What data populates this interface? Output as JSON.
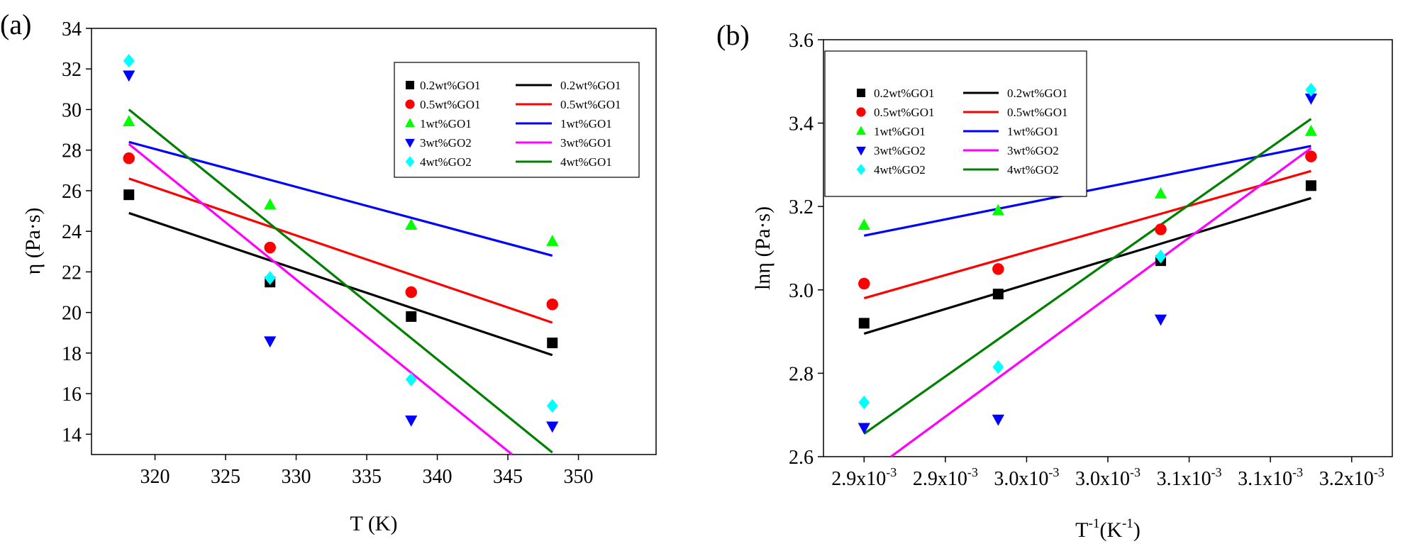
{
  "colors": {
    "0.2": "#000000",
    "0.5": "#ff0000",
    "1": "#00ff00",
    "1fit": "#0000ff",
    "3": "#0000ff",
    "3fit": "#ff00ff",
    "4": "#00ffff",
    "4fit": "#008000"
  },
  "chart_data": [
    {
      "type": "scatter",
      "panel_label": "(a)",
      "xlabel": "T (K)",
      "ylabel": "η (Pa·s)",
      "xlim": [
        315.5,
        355.5
      ],
      "ylim": [
        13,
        34
      ],
      "xticks": [
        320,
        325,
        330,
        335,
        340,
        345,
        350
      ],
      "xtick_labels": [
        "320",
        "325",
        "330",
        "335",
        "340",
        "345",
        "350"
      ],
      "yticks": [
        14,
        16,
        18,
        20,
        22,
        24,
        26,
        28,
        30,
        32,
        34
      ],
      "ytick_labels": [
        "14",
        "16",
        "18",
        "20",
        "22",
        "24",
        "26",
        "28",
        "30",
        "32",
        "34"
      ],
      "x": [
        318.15,
        328.15,
        338.15,
        348.15
      ],
      "series": [
        {
          "name": "0.2wt%GO1",
          "marker": "square",
          "color": "#000000",
          "values": [
            25.8,
            21.5,
            19.8,
            18.5
          ]
        },
        {
          "name": "0.5wt%GO1",
          "marker": "circle",
          "color": "#ff0000",
          "values": [
            27.6,
            23.2,
            21.0,
            20.4
          ]
        },
        {
          "name": "1wt%GO1",
          "marker": "triangle-up",
          "color": "#00ff00",
          "values": [
            29.4,
            25.3,
            24.3,
            23.5
          ]
        },
        {
          "name": "3wt%GO2",
          "marker": "triangle-down",
          "color": "#0000ff",
          "values": [
            31.7,
            18.6,
            14.7,
            14.4
          ]
        },
        {
          "name": "4wt%GO2",
          "marker": "diamond",
          "color": "#00ffff",
          "values": [
            32.4,
            21.7,
            16.7,
            15.4
          ]
        }
      ],
      "fits": [
        {
          "name": "0.2wt%GO1",
          "color": "#000000",
          "x": [
            318.15,
            348.15
          ],
          "y": [
            24.9,
            17.9
          ]
        },
        {
          "name": "0.5wt%GO1",
          "color": "#ff0000",
          "x": [
            318.15,
            348.15
          ],
          "y": [
            26.6,
            19.5
          ]
        },
        {
          "name": "1wt%GO1",
          "color": "#0000ff",
          "x": [
            318.15,
            348.15
          ],
          "y": [
            28.4,
            22.8
          ]
        },
        {
          "name": "3wt%GO1",
          "color": "#ff00ff",
          "x": [
            318.15,
            345.3
          ],
          "y": [
            28.3,
            13.0
          ]
        },
        {
          "name": "4wt%GO1",
          "color": "#008000",
          "x": [
            318.15,
            348.15
          ],
          "y": [
            30.0,
            13.1
          ]
        }
      ],
      "legend_placement": "top-right"
    },
    {
      "type": "scatter",
      "panel_label": "(b)",
      "xlabel": "T⁻¹(K⁻¹)",
      "xlabel_base": "T",
      "xlabel_sup1": "-1",
      "xlabel_mid": "(K",
      "xlabel_sup2": "-1",
      "xlabel_end": ")",
      "ylabel": "lnη (Pa·s)",
      "xlim": [
        0,
        7
      ],
      "ylim": [
        2.6,
        3.6
      ],
      "xticks": [
        0.5,
        1.5,
        2.5,
        3.5,
        4.5,
        5.5,
        6.5
      ],
      "xtick_mantissas": [
        "2.9x10",
        "2.9x10",
        "3.0x10",
        "3.0x10",
        "3.1x10",
        "3.1x10",
        "3.2x10"
      ],
      "xtick_exponent": "-3",
      "yticks": [
        2.6,
        2.8,
        3.0,
        3.2,
        3.4,
        3.6
      ],
      "ytick_labels": [
        "2.6",
        "2.8",
        "3.0",
        "3.2",
        "3.4",
        "3.6"
      ],
      "x": [
        0.5,
        2.15,
        4.15,
        6.0
      ],
      "series": [
        {
          "name": "0.2wt%GO1",
          "marker": "square",
          "color": "#000000",
          "values": [
            2.92,
            2.99,
            3.07,
            3.25
          ]
        },
        {
          "name": "0.5wt%GO1",
          "marker": "circle",
          "color": "#ff0000",
          "values": [
            3.015,
            3.05,
            3.145,
            3.32
          ]
        },
        {
          "name": "1wt%GO1",
          "marker": "triangle-up",
          "color": "#00ff00",
          "values": [
            3.155,
            3.19,
            3.23,
            3.38
          ]
        },
        {
          "name": "3wt%GO2",
          "marker": "triangle-down",
          "color": "#0000ff",
          "values": [
            2.67,
            2.69,
            2.93,
            3.46
          ]
        },
        {
          "name": "4wt%GO2",
          "marker": "diamond",
          "color": "#00ffff",
          "values": [
            2.73,
            2.815,
            3.08,
            3.48
          ]
        }
      ],
      "fits": [
        {
          "name": "0.2wt%GO1",
          "color": "#000000",
          "x": [
            0.5,
            6.0
          ],
          "y": [
            2.895,
            3.22
          ]
        },
        {
          "name": "0.5wt%GO1",
          "color": "#ff0000",
          "x": [
            0.5,
            6.0
          ],
          "y": [
            2.98,
            3.285
          ]
        },
        {
          "name": "1wt%GO1",
          "color": "#0000ff",
          "x": [
            0.5,
            6.0
          ],
          "y": [
            3.13,
            3.345
          ]
        },
        {
          "name": "3wt%GO2",
          "color": "#ff00ff",
          "x": [
            0.83,
            6.0
          ],
          "y": [
            2.6,
            3.34
          ]
        },
        {
          "name": "4wt%GO2",
          "color": "#008000",
          "x": [
            0.5,
            6.0
          ],
          "y": [
            2.655,
            3.41
          ]
        }
      ],
      "legend_placement": "top-left"
    }
  ]
}
